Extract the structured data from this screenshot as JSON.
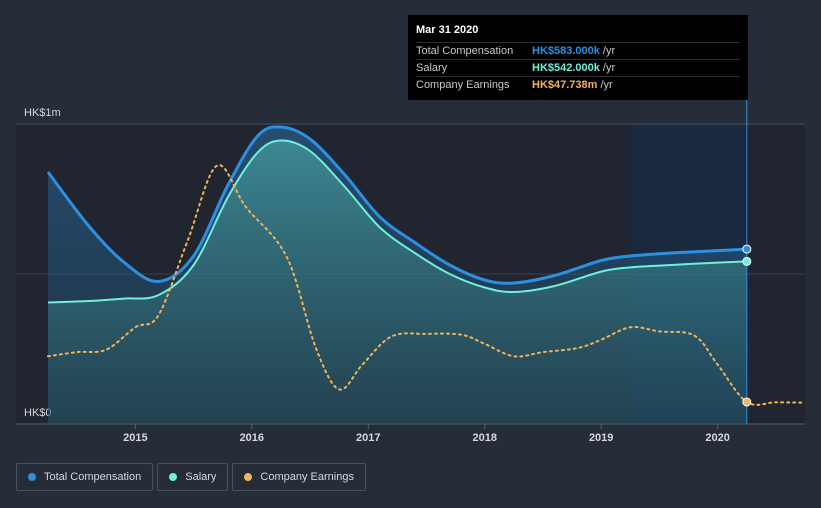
{
  "tooltip": {
    "date": "Mar 31 2020",
    "rows": [
      {
        "label": "Total Compensation",
        "value": "HK$583.000k",
        "unit": "/yr",
        "color": "#2d8fe0"
      },
      {
        "label": "Salary",
        "value": "HK$542.000k",
        "unit": "/yr",
        "color": "#6ff0dc"
      },
      {
        "label": "Company Earnings",
        "value": "HK$47.738m",
        "unit": "/yr",
        "color": "#f0b45a"
      }
    ]
  },
  "legend": [
    {
      "label": "Total Compensation",
      "color": "#2d8fe0"
    },
    {
      "label": "Salary",
      "color": "#6ff0dc"
    },
    {
      "label": "Company Earnings",
      "color": "#f0b45a"
    }
  ],
  "chart_data": {
    "type": "area",
    "title": "",
    "xlabel": "",
    "ylabel": "",
    "y_tick_labels": [
      "HK$0",
      "HK$1m"
    ],
    "x_tick_labels": [
      "2015",
      "2016",
      "2017",
      "2018",
      "2019",
      "2020"
    ],
    "xlim": [
      2014.25,
      2020.75
    ],
    "ylim_compensation": [
      0,
      1000
    ],
    "compensation_unit": "HK$k",
    "earnings_unit": "HK$m",
    "highlight_range": [
      2019.25,
      2020.25
    ],
    "series": [
      {
        "name": "Total Compensation",
        "color": "#2d8fe0",
        "x": [
          2014.25,
          2014.6,
          2014.9,
          2015.2,
          2015.5,
          2015.8,
          2016.05,
          2016.25,
          2016.5,
          2016.8,
          2017.1,
          2017.4,
          2017.7,
          2018.0,
          2018.25,
          2018.6,
          2019.0,
          2019.25,
          2019.6,
          2020.0,
          2020.25
        ],
        "values": [
          840,
          660,
          540,
          475,
          560,
          800,
          960,
          990,
          950,
          830,
          690,
          605,
          530,
          480,
          470,
          495,
          545,
          560,
          570,
          578,
          583
        ]
      },
      {
        "name": "Salary",
        "color": "#6ff0dc",
        "x": [
          2014.25,
          2014.6,
          2014.9,
          2015.2,
          2015.5,
          2015.8,
          2016.05,
          2016.25,
          2016.5,
          2016.8,
          2017.1,
          2017.4,
          2017.7,
          2018.0,
          2018.25,
          2018.6,
          2019.0,
          2019.25,
          2019.6,
          2020.0,
          2020.25
        ],
        "values": [
          405,
          410,
          418,
          430,
          530,
          760,
          905,
          945,
          910,
          790,
          655,
          570,
          500,
          455,
          440,
          460,
          508,
          522,
          530,
          538,
          542
        ]
      },
      {
        "name": "Company Earnings",
        "color": "#f0b45a",
        "x": [
          2014.25,
          2014.5,
          2014.75,
          2015.0,
          2015.2,
          2015.45,
          2015.7,
          2015.95,
          2016.3,
          2016.55,
          2016.75,
          2016.95,
          2017.2,
          2017.5,
          2017.8,
          2018.0,
          2018.25,
          2018.5,
          2018.8,
          2019.0,
          2019.25,
          2019.5,
          2019.8,
          2020.0,
          2020.25,
          2020.5,
          2020.75
        ],
        "values": [
          600,
          650,
          680,
          950,
          1100,
          2000,
          2900,
          2400,
          1800,
          700,
          200,
          500,
          840,
          870,
          860,
          750,
          600,
          650,
          700,
          800,
          950,
          900,
          850,
          500,
          47.738,
          45,
          40
        ]
      }
    ]
  }
}
